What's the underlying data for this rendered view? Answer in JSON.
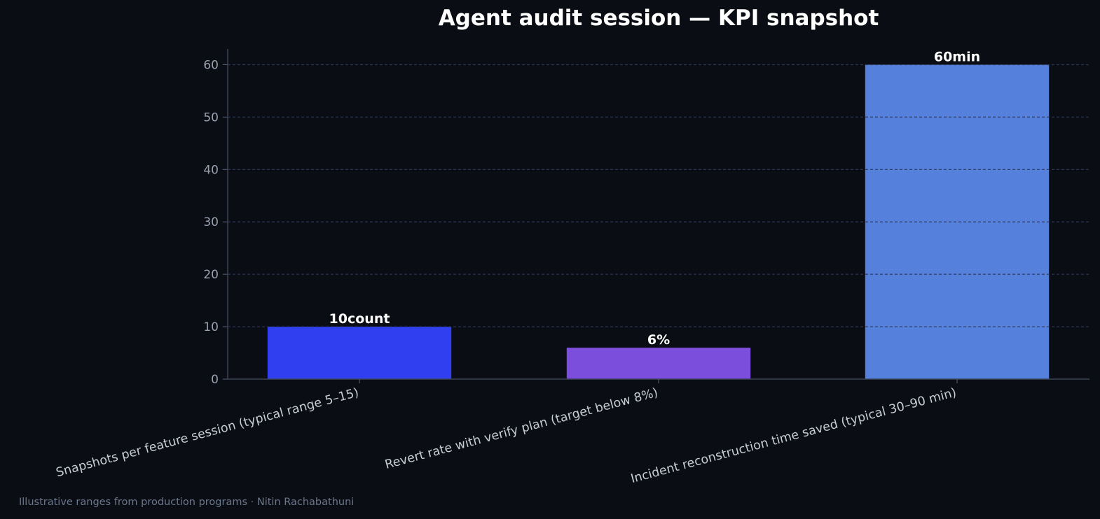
{
  "chart_data": {
    "type": "bar",
    "title": "Agent audit session — KPI snapshot",
    "categories": [
      "Snapshots per feature session (typical range 5–15)",
      "Revert rate with verify plan (target below 8%)",
      "Incident reconstruction time saved (typical 30–90 min)"
    ],
    "values": [
      10,
      6,
      60
    ],
    "value_labels": [
      "10count",
      "6%",
      "60min"
    ],
    "colors": [
      "#3040f0",
      "#7b4fdc",
      "#5580dc"
    ],
    "ylim": [
      0,
      63
    ],
    "yticks": [
      0,
      10,
      20,
      30,
      40,
      50,
      60
    ],
    "xlabel": "",
    "ylabel": "",
    "grid": true
  },
  "footnote": "Illustrative ranges from production programs · Nitin Rachabathuni"
}
